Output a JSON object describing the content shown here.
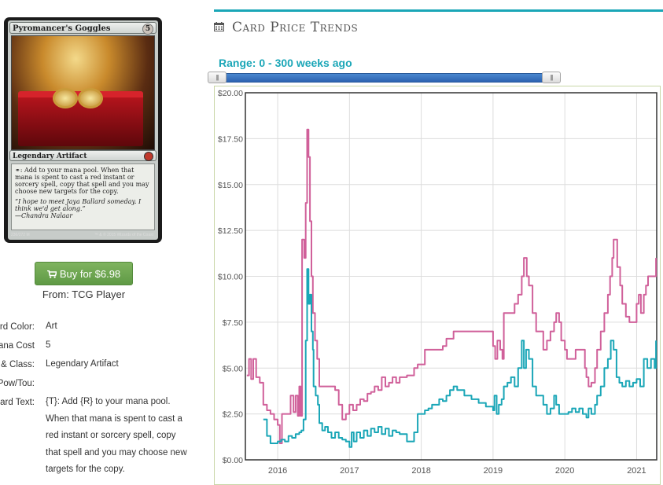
{
  "card": {
    "name": "Pyromancer's Goggles",
    "mana_cost": "5",
    "type_line": "Legendary Artifact",
    "rules_text": "{T}: Add {R} to your mana pool. When that mana is spent to cast a red instant or sorcery spell, copy that spell and you may choose new targets for the copy.",
    "rules_display": ": Add   to your mana pool. When that mana is spent to cast a red instant or sorcery spell, copy that spell and you may choose new targets for the copy.",
    "flavor_text": "“I hope to meet Jaya Ballard someday. I think we'd get along.”",
    "flavor_attribution": "—Chandra Nalaar",
    "collector_number": "236/272 M",
    "copyright": "™ & © 2015 Wizards of the Coast"
  },
  "buy": {
    "label": "Buy for $6.98",
    "source": "From: TCG Player",
    "icon": "shopping-cart-icon"
  },
  "details": [
    {
      "label": "Card Color:",
      "value": "Art"
    },
    {
      "label": "Mana Cost",
      "value": "5"
    },
    {
      "label": "Type & Class:",
      "value": "Legendary Artifact"
    },
    {
      "label": "Pow/Tou:",
      "value": ""
    },
    {
      "label": "Card Text:",
      "value": "{T}: Add {R} to your mana pool. When that mana is spent to cast a red instant or sorcery spell, copy that spell and you may choose new targets for the copy."
    }
  ],
  "panel": {
    "title": "Card Price Trends",
    "title_icon": "calendar-icon",
    "range_label": "Range: 0 - 300 weeks ago",
    "accent_color": "#1aa6b7"
  },
  "chart_data": {
    "type": "line",
    "x_axis_labels": [
      "2016",
      "2017",
      "2018",
      "2019",
      "2020",
      "2021"
    ],
    "y_axis_labels": [
      "$20.00",
      "$17.50",
      "$15.00",
      "$12.50",
      "$10.00",
      "$7.50",
      "$5.00",
      "$2.50",
      "$0.00"
    ],
    "ylim": [
      0,
      20
    ],
    "xlim": [
      2015.55,
      2021.28
    ],
    "grid": true,
    "series": [
      {
        "color": "#d0609a",
        "points": [
          [
            2015.57,
            4.6
          ],
          [
            2015.6,
            5.5
          ],
          [
            2015.63,
            4.4
          ],
          [
            2015.66,
            5.5
          ],
          [
            2015.7,
            4.5
          ],
          [
            2015.75,
            4.2
          ],
          [
            2015.8,
            3.0
          ],
          [
            2015.85,
            2.7
          ],
          [
            2015.9,
            2.5
          ],
          [
            2015.95,
            2.2
          ],
          [
            2016.0,
            1.9
          ],
          [
            2016.03,
            0.9
          ],
          [
            2016.06,
            2.5
          ],
          [
            2016.12,
            2.5
          ],
          [
            2016.18,
            3.5
          ],
          [
            2016.22,
            2.6
          ],
          [
            2016.25,
            3.5
          ],
          [
            2016.28,
            2.4
          ],
          [
            2016.3,
            4.0
          ],
          [
            2016.32,
            2.4
          ],
          [
            2016.34,
            12.0
          ],
          [
            2016.37,
            11.0
          ],
          [
            2016.39,
            14.0
          ],
          [
            2016.41,
            18.0
          ],
          [
            2016.43,
            16.5
          ],
          [
            2016.45,
            13.0
          ],
          [
            2016.47,
            10.0
          ],
          [
            2016.49,
            8.0
          ],
          [
            2016.52,
            6.5
          ],
          [
            2016.55,
            5.5
          ],
          [
            2016.58,
            4.0
          ],
          [
            2016.65,
            4.0
          ],
          [
            2016.75,
            4.0
          ],
          [
            2016.8,
            3.8
          ],
          [
            2016.85,
            3.0
          ],
          [
            2016.9,
            2.2
          ],
          [
            2016.95,
            2.5
          ],
          [
            2017.0,
            3.0
          ],
          [
            2017.05,
            2.7
          ],
          [
            2017.1,
            3.0
          ],
          [
            2017.15,
            3.3
          ],
          [
            2017.2,
            3.2
          ],
          [
            2017.25,
            3.6
          ],
          [
            2017.3,
            3.7
          ],
          [
            2017.35,
            4.0
          ],
          [
            2017.4,
            3.8
          ],
          [
            2017.45,
            4.5
          ],
          [
            2017.5,
            4.0
          ],
          [
            2017.55,
            4.2
          ],
          [
            2017.6,
            4.5
          ],
          [
            2017.65,
            4.2
          ],
          [
            2017.7,
            4.5
          ],
          [
            2017.8,
            4.6
          ],
          [
            2017.9,
            5.0
          ],
          [
            2017.95,
            5.2
          ],
          [
            2018.0,
            5.2
          ],
          [
            2018.05,
            6.0
          ],
          [
            2018.1,
            6.0
          ],
          [
            2018.15,
            6.0
          ],
          [
            2018.2,
            6.0
          ],
          [
            2018.3,
            6.2
          ],
          [
            2018.35,
            6.6
          ],
          [
            2018.45,
            7.0
          ],
          [
            2018.55,
            7.0
          ],
          [
            2018.7,
            7.0
          ],
          [
            2018.85,
            7.0
          ],
          [
            2018.95,
            7.0
          ],
          [
            2019.0,
            6.2
          ],
          [
            2019.03,
            5.5
          ],
          [
            2019.06,
            6.5
          ],
          [
            2019.1,
            6.0
          ],
          [
            2019.13,
            5.5
          ],
          [
            2019.15,
            8.0
          ],
          [
            2019.2,
            8.0
          ],
          [
            2019.25,
            8.0
          ],
          [
            2019.3,
            8.5
          ],
          [
            2019.35,
            9.0
          ],
          [
            2019.4,
            10.0
          ],
          [
            2019.43,
            11.0
          ],
          [
            2019.47,
            10.0
          ],
          [
            2019.5,
            9.5
          ],
          [
            2019.55,
            8.0
          ],
          [
            2019.6,
            7.0
          ],
          [
            2019.65,
            7.0
          ],
          [
            2019.7,
            6.0
          ],
          [
            2019.75,
            6.5
          ],
          [
            2019.8,
            7.0
          ],
          [
            2019.85,
            7.5
          ],
          [
            2019.88,
            8.0
          ],
          [
            2019.92,
            7.5
          ],
          [
            2019.95,
            6.5
          ],
          [
            2020.0,
            6.0
          ],
          [
            2020.03,
            5.5
          ],
          [
            2020.08,
            5.5
          ],
          [
            2020.15,
            6.0
          ],
          [
            2020.2,
            6.0
          ],
          [
            2020.25,
            6.0
          ],
          [
            2020.28,
            5.0
          ],
          [
            2020.3,
            4.5
          ],
          [
            2020.33,
            4.0
          ],
          [
            2020.37,
            4.2
          ],
          [
            2020.42,
            5.0
          ],
          [
            2020.45,
            6.0
          ],
          [
            2020.5,
            7.0
          ],
          [
            2020.55,
            8.0
          ],
          [
            2020.6,
            9.0
          ],
          [
            2020.63,
            10.0
          ],
          [
            2020.66,
            11.0
          ],
          [
            2020.68,
            12.0
          ],
          [
            2020.7,
            12.0
          ],
          [
            2020.73,
            10.5
          ],
          [
            2020.77,
            9.5
          ],
          [
            2020.8,
            8.5
          ],
          [
            2020.85,
            7.8
          ],
          [
            2020.9,
            7.5
          ],
          [
            2020.95,
            7.5
          ],
          [
            2021.0,
            8.5
          ],
          [
            2021.03,
            9.0
          ],
          [
            2021.06,
            8.0
          ],
          [
            2021.1,
            9.0
          ],
          [
            2021.13,
            9.5
          ],
          [
            2021.16,
            10.0
          ],
          [
            2021.2,
            10.0
          ],
          [
            2021.25,
            10.0
          ],
          [
            2021.27,
            11.0
          ]
        ]
      },
      {
        "color": "#1aa6b7",
        "points": [
          [
            2015.8,
            2.2
          ],
          [
            2015.85,
            1.3
          ],
          [
            2015.9,
            0.9
          ],
          [
            2015.95,
            0.9
          ],
          [
            2016.0,
            1.0
          ],
          [
            2016.05,
            1.1
          ],
          [
            2016.1,
            1.0
          ],
          [
            2016.15,
            1.3
          ],
          [
            2016.2,
            1.2
          ],
          [
            2016.25,
            1.4
          ],
          [
            2016.3,
            1.5
          ],
          [
            2016.33,
            1.6
          ],
          [
            2016.36,
            2.2
          ],
          [
            2016.39,
            6.5
          ],
          [
            2016.41,
            10.4
          ],
          [
            2016.43,
            8.5
          ],
          [
            2016.45,
            9.0
          ],
          [
            2016.47,
            7.0
          ],
          [
            2016.49,
            6.0
          ],
          [
            2016.5,
            4.0
          ],
          [
            2016.53,
            3.5
          ],
          [
            2016.56,
            3.0
          ],
          [
            2016.58,
            2.0
          ],
          [
            2016.62,
            1.6
          ],
          [
            2016.66,
            1.8
          ],
          [
            2016.7,
            1.5
          ],
          [
            2016.75,
            1.2
          ],
          [
            2016.8,
            1.5
          ],
          [
            2016.85,
            1.2
          ],
          [
            2016.9,
            1.1
          ],
          [
            2016.95,
            1.0
          ],
          [
            2017.0,
            0.7
          ],
          [
            2017.03,
            1.5
          ],
          [
            2017.06,
            1.0
          ],
          [
            2017.1,
            1.5
          ],
          [
            2017.15,
            1.2
          ],
          [
            2017.2,
            1.6
          ],
          [
            2017.25,
            1.3
          ],
          [
            2017.3,
            1.7
          ],
          [
            2017.35,
            1.5
          ],
          [
            2017.4,
            1.8
          ],
          [
            2017.45,
            1.4
          ],
          [
            2017.5,
            1.7
          ],
          [
            2017.55,
            1.3
          ],
          [
            2017.6,
            1.6
          ],
          [
            2017.65,
            1.5
          ],
          [
            2017.7,
            1.4
          ],
          [
            2017.8,
            1.0
          ],
          [
            2017.9,
            1.5
          ],
          [
            2017.95,
            2.5
          ],
          [
            2018.0,
            2.5
          ],
          [
            2018.05,
            2.7
          ],
          [
            2018.1,
            2.8
          ],
          [
            2018.15,
            3.0
          ],
          [
            2018.2,
            3.0
          ],
          [
            2018.25,
            3.3
          ],
          [
            2018.3,
            3.2
          ],
          [
            2018.35,
            3.5
          ],
          [
            2018.4,
            3.8
          ],
          [
            2018.45,
            4.0
          ],
          [
            2018.5,
            3.8
          ],
          [
            2018.6,
            3.5
          ],
          [
            2018.7,
            3.3
          ],
          [
            2018.8,
            3.1
          ],
          [
            2018.9,
            2.9
          ],
          [
            2019.0,
            2.7
          ],
          [
            2019.02,
            3.5
          ],
          [
            2019.05,
            2.5
          ],
          [
            2019.08,
            3.0
          ],
          [
            2019.12,
            3.3
          ],
          [
            2019.15,
            4.0
          ],
          [
            2019.2,
            4.2
          ],
          [
            2019.25,
            4.5
          ],
          [
            2019.3,
            4.0
          ],
          [
            2019.35,
            5.0
          ],
          [
            2019.4,
            6.5
          ],
          [
            2019.43,
            5.0
          ],
          [
            2019.46,
            6.0
          ],
          [
            2019.5,
            5.5
          ],
          [
            2019.55,
            4.0
          ],
          [
            2019.6,
            3.5
          ],
          [
            2019.65,
            3.5
          ],
          [
            2019.7,
            3.0
          ],
          [
            2019.75,
            2.5
          ],
          [
            2019.8,
            2.8
          ],
          [
            2019.85,
            3.5
          ],
          [
            2019.88,
            3.0
          ],
          [
            2019.92,
            2.5
          ],
          [
            2019.96,
            2.5
          ],
          [
            2020.0,
            2.5
          ],
          [
            2020.05,
            2.6
          ],
          [
            2020.1,
            2.8
          ],
          [
            2020.15,
            2.6
          ],
          [
            2020.2,
            2.8
          ],
          [
            2020.25,
            2.5
          ],
          [
            2020.3,
            2.3
          ],
          [
            2020.33,
            2.8
          ],
          [
            2020.37,
            2.5
          ],
          [
            2020.42,
            3.0
          ],
          [
            2020.45,
            3.5
          ],
          [
            2020.5,
            4.0
          ],
          [
            2020.55,
            5.0
          ],
          [
            2020.6,
            5.5
          ],
          [
            2020.64,
            6.5
          ],
          [
            2020.68,
            6.0
          ],
          [
            2020.72,
            4.5
          ],
          [
            2020.76,
            4.2
          ],
          [
            2020.8,
            4.0
          ],
          [
            2020.85,
            4.3
          ],
          [
            2020.9,
            4.0
          ],
          [
            2020.95,
            4.2
          ],
          [
            2021.0,
            4.4
          ],
          [
            2021.05,
            4.0
          ],
          [
            2021.1,
            5.5
          ],
          [
            2021.15,
            5.0
          ],
          [
            2021.2,
            5.5
          ],
          [
            2021.25,
            5.0
          ],
          [
            2021.27,
            6.5
          ]
        ]
      }
    ]
  }
}
